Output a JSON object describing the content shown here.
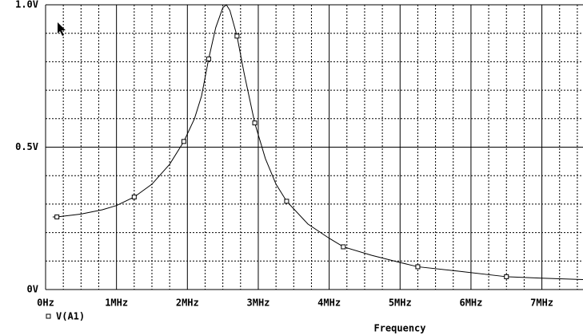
{
  "chart_data": {
    "type": "line",
    "xlabel": "Frequency",
    "xlim": [
      0,
      7.58
    ],
    "ylim": [
      0,
      1.0
    ],
    "xticks": [
      {
        "value": 0,
        "label": "0Hz"
      },
      {
        "value": 1,
        "label": "1MHz"
      },
      {
        "value": 2,
        "label": "2MHz"
      },
      {
        "value": 3,
        "label": "3MHz"
      },
      {
        "value": 4,
        "label": "4MHz"
      },
      {
        "value": 5,
        "label": "5MHz"
      },
      {
        "value": 6,
        "label": "6MHz"
      },
      {
        "value": 7,
        "label": "7MHz"
      }
    ],
    "yticks": [
      {
        "value": 0,
        "label": "0V"
      },
      {
        "value": 0.5,
        "label": "0.5V"
      },
      {
        "value": 1.0,
        "label": "1.0V"
      }
    ],
    "grid": true,
    "series": [
      {
        "name": "V(A1)",
        "color": "#000000",
        "x": [
          0.1,
          0.16,
          0.5,
          0.8,
          1.0,
          1.25,
          1.5,
          1.75,
          1.95,
          2.1,
          2.2,
          2.3,
          2.4,
          2.5,
          2.55,
          2.6,
          2.7,
          2.8,
          2.95,
          3.1,
          3.25,
          3.4,
          3.7,
          4.0,
          4.2,
          4.6,
          5.0,
          5.25,
          5.8,
          6.5,
          7.0,
          7.58
        ],
        "values": [
          0.255,
          0.255,
          0.265,
          0.28,
          0.295,
          0.325,
          0.37,
          0.44,
          0.52,
          0.6,
          0.68,
          0.81,
          0.92,
          0.99,
          1.0,
          0.98,
          0.89,
          0.76,
          0.585,
          0.46,
          0.37,
          0.31,
          0.23,
          0.18,
          0.15,
          0.12,
          0.095,
          0.08,
          0.065,
          0.045,
          0.04,
          0.035
        ],
        "marker_x": [
          0.16,
          1.25,
          1.95,
          2.3,
          2.7,
          2.95,
          3.4,
          4.2,
          5.25,
          6.5
        ],
        "marker_values": [
          0.255,
          0.325,
          0.52,
          0.81,
          0.89,
          0.585,
          0.31,
          0.15,
          0.08,
          0.045
        ]
      }
    ]
  }
}
